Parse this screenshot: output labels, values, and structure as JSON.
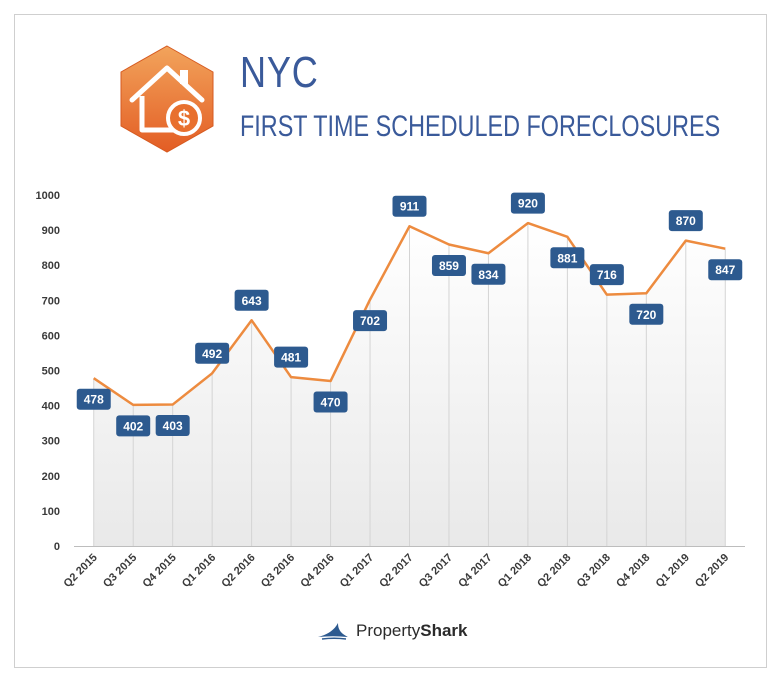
{
  "header": {
    "title": "NYC",
    "subtitle": "FIRST TIME SCHEDULED FORECLOSURES",
    "icon": "house-dollar-icon",
    "icon_color": "#ea7a2f"
  },
  "brand": {
    "prefix": "Property",
    "suffix": "Shark",
    "icon": "shark-fin-icon"
  },
  "chart_data": {
    "type": "line",
    "title": "",
    "xlabel": "",
    "ylabel": "",
    "ylim": [
      0,
      1000
    ],
    "yticks": [
      0,
      100,
      200,
      300,
      400,
      500,
      600,
      700,
      800,
      900,
      1000
    ],
    "grid": "vertical drop lines",
    "line_color": "#ed8b3f",
    "label_color": "#2d5a8f",
    "categories": [
      "Q2 2015",
      "Q3 2015",
      "Q4 2015",
      "Q1 2016",
      "Q2 2016",
      "Q3 2016",
      "Q4 2016",
      "Q1 2017",
      "Q2 2017",
      "Q3 2017",
      "Q4 2017",
      "Q1 2018",
      "Q2 2018",
      "Q3 2018",
      "Q4 2018",
      "Q1 2019",
      "Q2 2019"
    ],
    "series": [
      {
        "values": [
          478,
          402,
          403,
          492,
          643,
          481,
          470,
          702,
          911,
          859,
          834,
          920,
          881,
          716,
          720,
          870,
          847
        ]
      }
    ],
    "label_positions": [
      "below",
      "below",
      "below",
      "above",
      "above",
      "above",
      "below",
      "below",
      "above",
      "below",
      "below",
      "above",
      "below",
      "above",
      "below",
      "above",
      "below"
    ]
  }
}
